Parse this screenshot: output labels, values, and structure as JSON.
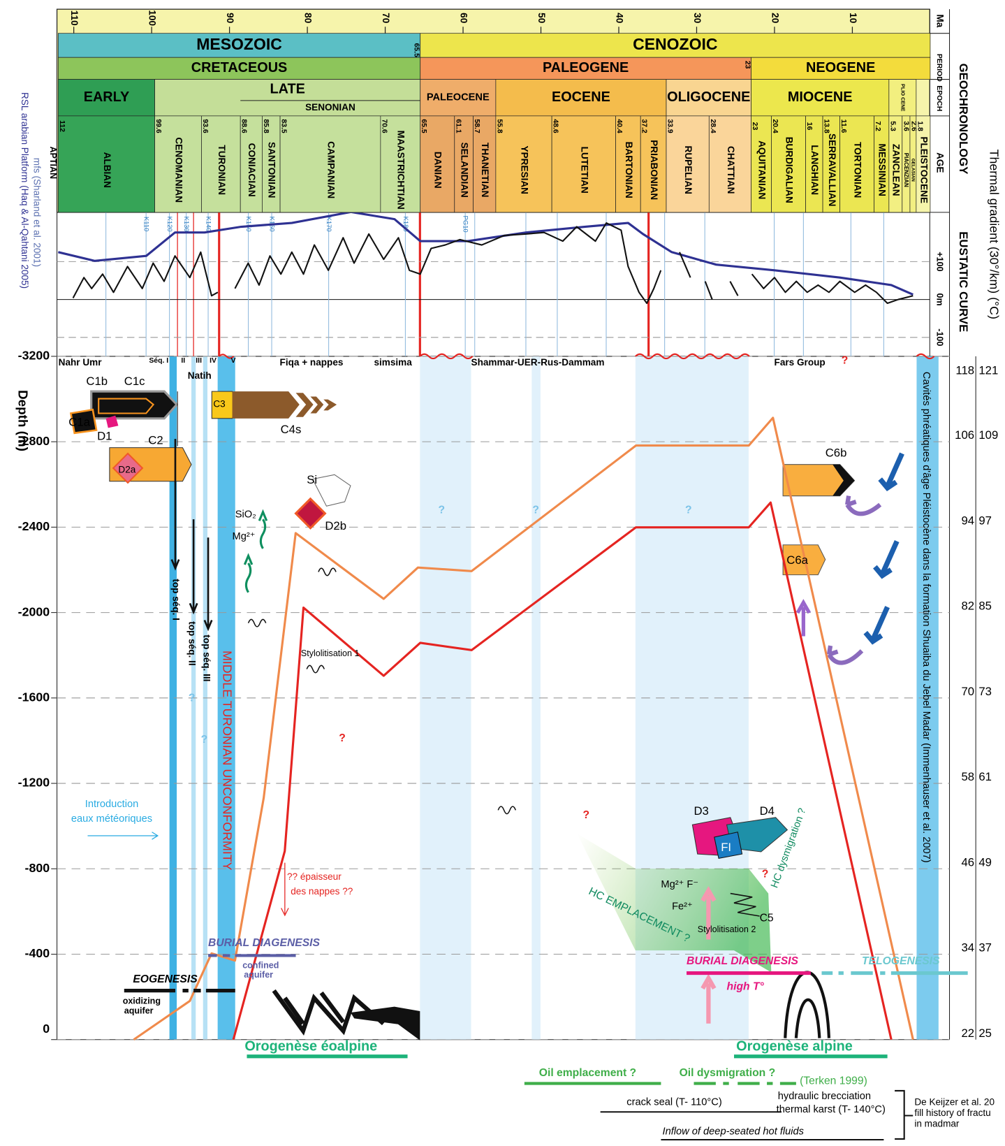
{
  "chart_data": [
    {
      "type": "timescale",
      "title": "GEOCHRONOLOGY",
      "x_label": "Ma",
      "row_labels": [
        "PERIOD",
        "EPOCH",
        "AGE"
      ],
      "xlim": [
        112,
        0
      ],
      "xticks": [
        110,
        100,
        90,
        80,
        70,
        60,
        50,
        40,
        30,
        20,
        10
      ],
      "left_stage": "APTIAN",
      "eras": [
        {
          "name": "MESOZOIC",
          "from": 112,
          "to": 65.5,
          "color": "#5bbfc5"
        },
        {
          "name": "CENOZOIC",
          "from": 65.5,
          "to": 0,
          "color": "#ede54c"
        }
      ],
      "periods": [
        {
          "name": "CRETACEOUS",
          "from": 112,
          "to": 65.5,
          "color": "#8dc55b"
        },
        {
          "name": "PALEOGENE",
          "from": 65.5,
          "to": 23,
          "color": "#f5965a"
        },
        {
          "name": "NEOGENE",
          "from": 23,
          "to": 0,
          "color": "#f3dc3c"
        }
      ],
      "epochs": [
        {
          "name": "EARLY",
          "from": 112,
          "to": 99.6,
          "color": "#2f9e54"
        },
        {
          "name": "LATE",
          "from": 99.6,
          "to": 65.5,
          "color": "#c4de98"
        },
        {
          "name": "PALEOCENE",
          "from": 65.5,
          "to": 55.8,
          "color": "#efad6a"
        },
        {
          "name": "EOCENE",
          "from": 55.8,
          "to": 33.9,
          "color": "#f4bc4c"
        },
        {
          "name": "OLIGOCENE",
          "from": 33.9,
          "to": 23,
          "color": "#f9d591"
        },
        {
          "name": "MIOCENE",
          "from": 23,
          "to": 5.3,
          "color": "#ece74d"
        },
        {
          "name": "PLIO CENE",
          "from": 5.3,
          "to": 1.8,
          "color": "#f2ef7f"
        }
      ],
      "subepochs": [
        {
          "name": "SENONIAN",
          "from": 88.6,
          "to": 65.5
        }
      ],
      "stages": [
        {
          "name": "ALBIAN",
          "from": 112,
          "to": 99.6,
          "color": "#36a457"
        },
        {
          "name": "CENOMANIAN",
          "from": 99.6,
          "to": 93.6,
          "color": "#c5e09c"
        },
        {
          "name": "TURONIAN",
          "from": 93.6,
          "to": 88.6,
          "color": "#c5e09c"
        },
        {
          "name": "CONIACIAN",
          "from": 88.6,
          "to": 85.8,
          "color": "#c5e09c"
        },
        {
          "name": "SANTONIAN",
          "from": 85.8,
          "to": 83.5,
          "color": "#c5e09c"
        },
        {
          "name": "CAMPANIAN",
          "from": 83.5,
          "to": 70.6,
          "color": "#c5e09c"
        },
        {
          "name": "MAASTRICHTIAN",
          "from": 70.6,
          "to": 65.5,
          "color": "#c5e09c"
        },
        {
          "name": "DANIAN",
          "from": 65.5,
          "to": 61.1,
          "color": "#e9a865"
        },
        {
          "name": "SELANDIAN",
          "from": 61.1,
          "to": 58.7,
          "color": "#e9a865"
        },
        {
          "name": "THANETIAN",
          "from": 58.7,
          "to": 55.8,
          "color": "#e9a865"
        },
        {
          "name": "YPRESIAN",
          "from": 55.8,
          "to": 48.6,
          "color": "#f6c35a"
        },
        {
          "name": "LUTETIAN",
          "from": 48.6,
          "to": 40.4,
          "color": "#f6c35a"
        },
        {
          "name": "BARTONIAN",
          "from": 40.4,
          "to": 37.2,
          "color": "#f6c35a"
        },
        {
          "name": "PRIABONIAN",
          "from": 37.2,
          "to": 33.9,
          "color": "#f6c35a"
        },
        {
          "name": "RUPELIAN",
          "from": 33.9,
          "to": 28.4,
          "color": "#fad59a"
        },
        {
          "name": "CHATTIAN",
          "from": 28.4,
          "to": 23,
          "color": "#fad59a"
        },
        {
          "name": "AQUITANIAN",
          "from": 23,
          "to": 20.4,
          "color": "#ebe652"
        },
        {
          "name": "BURDIGALIAN",
          "from": 20.4,
          "to": 16,
          "color": "#ebe652"
        },
        {
          "name": "LANGHIAN",
          "from": 16,
          "to": 13.8,
          "color": "#ebe652"
        },
        {
          "name": "SERRAVALLIAN",
          "from": 13.8,
          "to": 11.6,
          "color": "#ebe652"
        },
        {
          "name": "TORTONIAN",
          "from": 11.6,
          "to": 7.2,
          "color": "#ebe652"
        },
        {
          "name": "MESSINIAN",
          "from": 7.2,
          "to": 5.3,
          "color": "#ebe652"
        },
        {
          "name": "ZANCLEAN",
          "from": 5.3,
          "to": 3.6,
          "color": "#f2ef82"
        },
        {
          "name": "PIACENZIAN",
          "from": 3.6,
          "to": 2.6,
          "color": "#f2ef82"
        },
        {
          "name": "GELASIAN",
          "from": 2.6,
          "to": 1.8,
          "color": "#f2ef82"
        },
        {
          "name": "PLEISTOCENE",
          "from": 1.8,
          "to": 0,
          "color": "#f6f4ab"
        }
      ]
    },
    {
      "type": "line",
      "title": "EUSTATIC CURVE",
      "xlim": [
        112,
        0
      ],
      "ylim": [
        -150,
        230
      ],
      "yticks": [
        {
          "value": 100,
          "label": "+100"
        },
        {
          "value": 0,
          "label": "0m"
        },
        -100
      ],
      "mfs_title": "mfs (Sharland et al. 2001)",
      "mfs_labels": [
        "K110",
        "K120",
        "K130",
        "K140",
        "K150",
        "K160",
        "K170",
        "K180",
        "PG10"
      ],
      "series": [
        {
          "name": "RSL arabian Platform (Haq & Al-Qahtani 2005)",
          "color": "#2e3192",
          "x": [
            112,
            107.3,
            100.7,
            97,
            93.2,
            88.5,
            82,
            74.4,
            68.8,
            65.5,
            59.4,
            51.9,
            44.4,
            38.8,
            36.9,
            33.2,
            27.5,
            20,
            11.6,
            5,
            2.2
          ],
          "values": [
            125,
            102,
            115,
            177,
            177,
            192,
            202,
            231,
            212,
            154,
            154,
            177,
            192,
            202,
            173,
            125,
            92,
            77,
            58,
            38,
            13
          ]
        },
        {
          "color": "#111111",
          "x": [
            110.1,
            108.7,
            107.7,
            106.3,
            104.9,
            103.1,
            101.2,
            99.8,
            98.4,
            97,
            95.1,
            93.7,
            92.3,
            91.5,
            null,
            89.3,
            87.6,
            86.2,
            84.8,
            83.4,
            82,
            80.5,
            79.1,
            77.3,
            75.4,
            74,
            72.1,
            70.2,
            68.3,
            66.9,
            65.5,
            64.1,
            62.3,
            60.4,
            57.6,
            54.7,
            51.9,
            49.6,
            47.2,
            45.4,
            43,
            41.6,
            39.7,
            38.8,
            37.4,
            36.4,
            35.5,
            34.6,
            null,
            32.2,
            30.8,
            null,
            28.9,
            28,
            null,
            25.7,
            24.7,
            null,
            22.9,
            21.4,
            20,
            18.6,
            17.2,
            15.8,
            14.4,
            13,
            11.6,
            9.7,
            8.3,
            6.9,
            5.5,
            4.1,
            2.2
          ],
          "values": [
            4,
            58,
            29,
            67,
            19,
            87,
            29,
            96,
            48,
            115,
            58,
            125,
            10,
            19,
            null,
            29,
            96,
            38,
            115,
            67,
            125,
            67,
            144,
            77,
            163,
            96,
            173,
            106,
            163,
            77,
            67,
            135,
            144,
            158,
            144,
            169,
            173,
            177,
            154,
            192,
            154,
            202,
            183,
            87,
            19,
            -10,
            29,
            77,
            null,
            125,
            58,
            null,
            48,
            0,
            null,
            48,
            10,
            null,
            67,
            29,
            58,
            19,
            48,
            19,
            38,
            19,
            48,
            19,
            38,
            19,
            -10,
            0,
            10
          ]
        }
      ]
    },
    {
      "type": "line",
      "y_label": "Depth (m)",
      "y2_label": "Thermal gradient (30°/km) (°C)",
      "xlim": [
        112,
        0
      ],
      "ylim": [
        0,
        -3200
      ],
      "yticks": [
        0,
        -400,
        -800,
        -1200,
        -1600,
        -2000,
        -2400,
        -2800,
        -3200
      ],
      "thermal_min": [
        22,
        34,
        46,
        58,
        70,
        82,
        94,
        106,
        118
      ],
      "thermal_max": [
        25,
        37,
        49,
        61,
        73,
        85,
        97,
        109,
        121
      ],
      "series": [
        {
          "color": "#e52421",
          "x": [
            89.5,
            82.9,
            80.5,
            70.2,
            65.5,
            58.9,
            37.8,
            23.3,
            20.5,
            5
          ],
          "values": [
            0,
            -883,
            -2023,
            -1704,
            -1858,
            -1824,
            -2399,
            -2399,
            -2515,
            0
          ]
        },
        {
          "color": "#f08a4b",
          "x": [
            102.3,
            95.1,
            92.3,
            89.3,
            85.6,
            81.5,
            70.2,
            65.8,
            58.9,
            37.8,
            23.3,
            20.2,
            2.2
          ],
          "values": [
            0,
            -181,
            -404,
            -370,
            -1133,
            -2372,
            -2064,
            -2211,
            -2194,
            -2782,
            -2782,
            -2912,
            0
          ]
        }
      ]
    }
  ],
  "annotations": {
    "nahr_umr": "Nahr Umr",
    "seq1": "Séq. I",
    "seq2": "II",
    "seq3": "III",
    "seq4": "IV",
    "seq5": "V",
    "natih": "Natih",
    "fiqa": "Fiqa + nappes",
    "simsima": "simsima",
    "shammar": "Shammar-UER-Rus-Dammam",
    "fars": "Fars Group",
    "q": "?",
    "c1a": "C1a",
    "c1b": "C1b",
    "c1c": "C1c",
    "d1": "D1",
    "c2": "C2",
    "d2a": "D2a",
    "c3": "C3",
    "c4s": "C4s",
    "si": "Si",
    "sio2": "SiO₂",
    "mg": "Mg²⁺",
    "d2b": "D2b",
    "c6b": "C6b",
    "c6a": "C6a",
    "d3": "D3",
    "d4": "D4",
    "fi": "FI",
    "top1": "top séq. I",
    "top2": "top séq. II",
    "top3": "top séq. III",
    "unconformity": "MIDDLE TURONIAN UNCONFORMITY",
    "stylo1": "Stylolitisation 1",
    "intro1": "Introduction",
    "intro2": "eaux météoriques",
    "ep1": "?? épaisseur",
    "ep2": "des nappes ??",
    "hc_emp": "HC EMPLACEMENT ?",
    "hc_dys": "HC dysmigration ?",
    "mgf": "Mg²⁺ F⁻",
    "fe": "Fe²⁺",
    "c5": "C5",
    "stylo2": "Stylolitisation 2",
    "burial1": "BURIAL DIAGENESIS",
    "confined1": "confined",
    "confined2": "aquifer",
    "eogenesis": "EOGENESIS",
    "oxid1": "oxidizing",
    "oxid2": "aquifer",
    "burial2": "BURIAL DIAGENESIS",
    "hight": "high T°",
    "telogenesis": "TELOGENESIS",
    "oro1": "Orogenèse éoalpine",
    "oro2": "Orogenèse alpine",
    "oil_emp": "Oil emplacement ?",
    "oil_dys": "Oil dysmigration ?",
    "terken": "(Terken 1999)",
    "crack": "crack seal (T- 110°C)",
    "hydro": "hydraulic brecciation",
    "karst": "thermal karst (T- 140°C)",
    "dek1": "De Keijzer et al. 20",
    "dek2": "fill history of fractu",
    "dek3": "in madmar",
    "inflow": "Inflow of deep-seated hot fluids",
    "cavites": "Cavités phréatiques d'âge Pléistocène dans la formation Shuaiba du Jebel Madar (Immenhauser et al. 2007)"
  }
}
